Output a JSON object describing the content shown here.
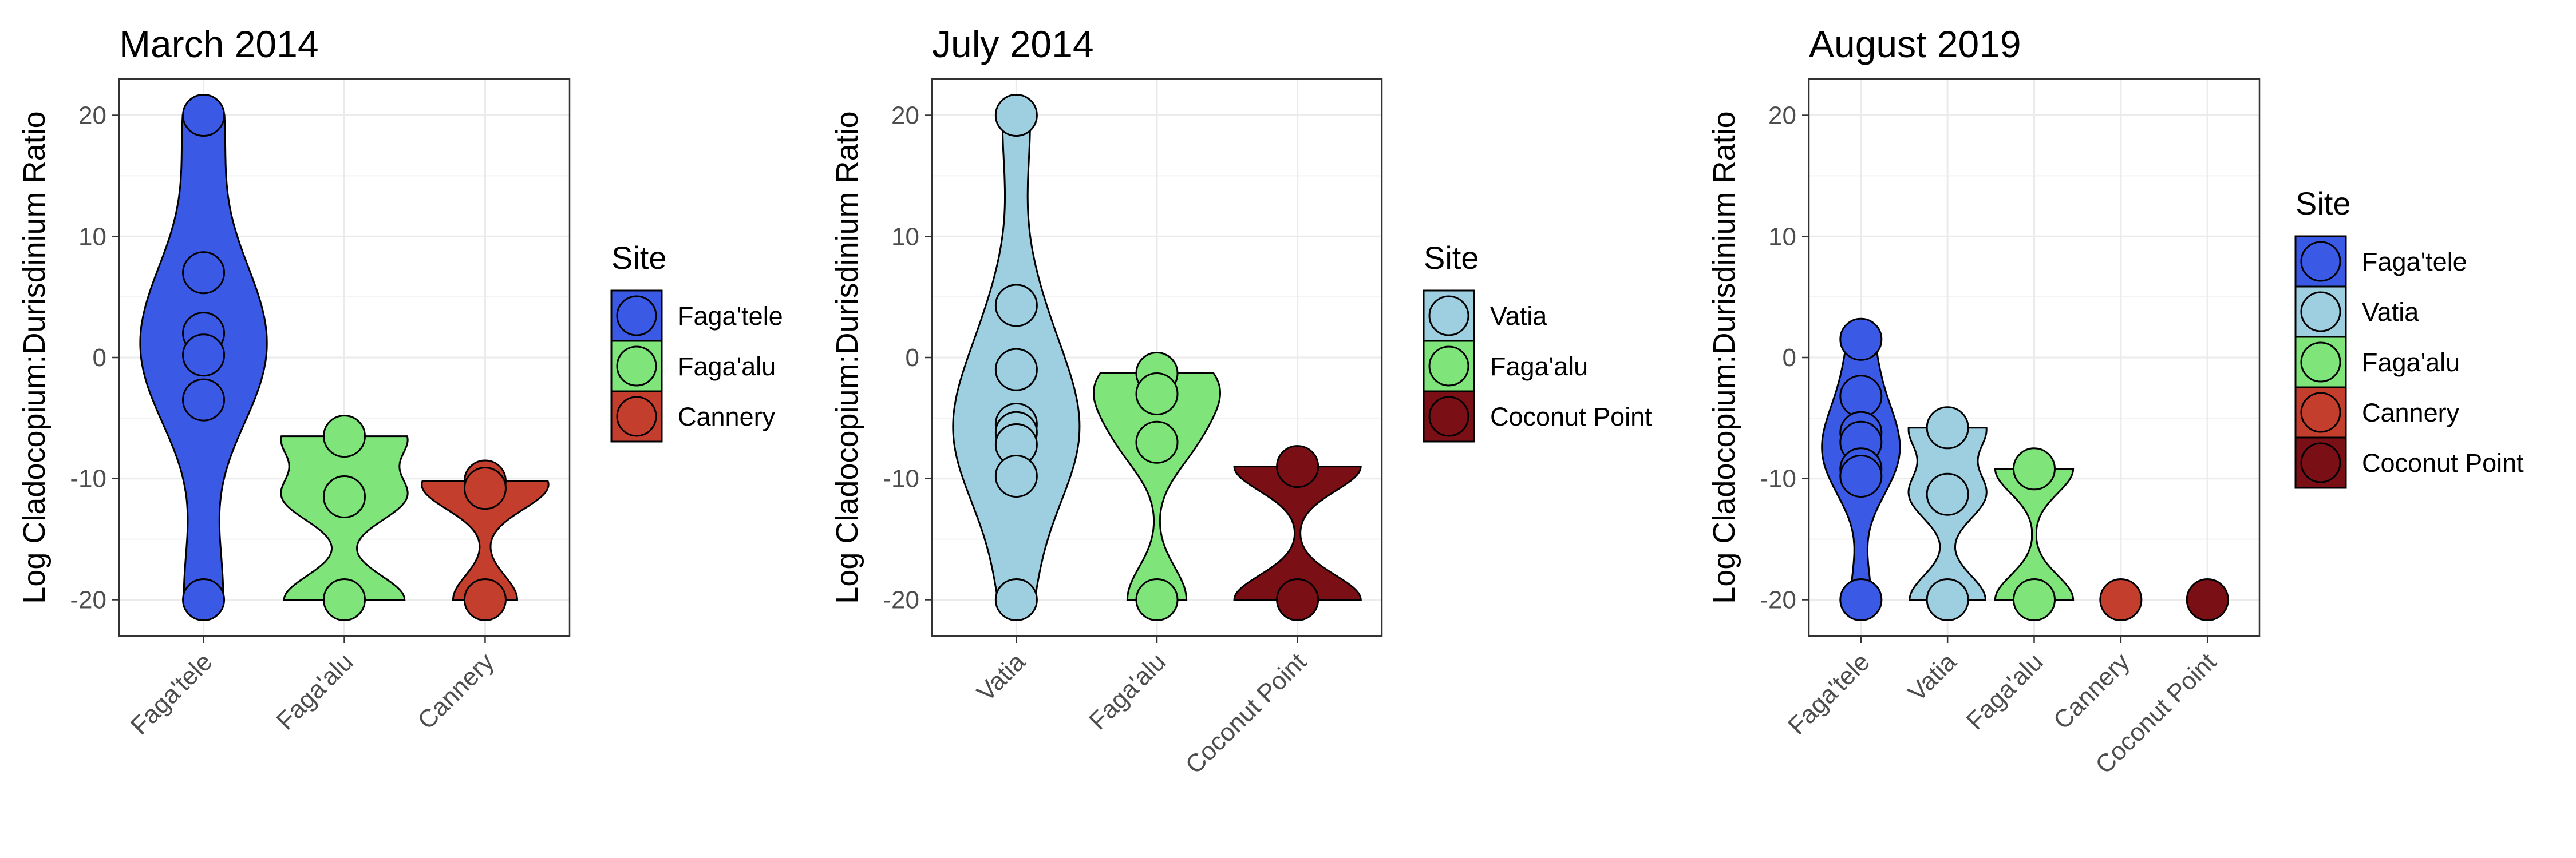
{
  "chart_data": [
    {
      "type": "violin",
      "title": "March 2014",
      "ylabel": "Log Cladocopium:Durisdinium Ratio",
      "xlabel": "",
      "ylim": [
        -23,
        23
      ],
      "yticks": [
        -20,
        -10,
        0,
        10,
        20
      ],
      "categories": [
        "Faga'tele",
        "Faga'alu",
        "Cannery"
      ],
      "series": [
        {
          "name": "Faga'tele",
          "color": "#3a5ae6",
          "values": [
            20,
            7,
            2,
            0.2,
            -3.5,
            -20
          ]
        },
        {
          "name": "Faga'alu",
          "color": "#7fe57a",
          "values": [
            -6.5,
            -11.5,
            -20
          ]
        },
        {
          "name": "Cannery",
          "color": "#c43e2e",
          "values": [
            -10.2,
            -10.8,
            -20
          ]
        }
      ],
      "legend": {
        "title": "Site",
        "entries": [
          "Faga'tele",
          "Faga'alu",
          "Cannery"
        ]
      }
    },
    {
      "type": "violin",
      "title": "July 2014",
      "ylabel": "Log Cladocopium:Durisdinium Ratio",
      "xlabel": "",
      "ylim": [
        -23,
        23
      ],
      "yticks": [
        -20,
        -10,
        0,
        10,
        20
      ],
      "categories": [
        "Vatia",
        "Faga'alu",
        "Coconut Point"
      ],
      "series": [
        {
          "name": "Vatia",
          "color": "#9ecfe0",
          "values": [
            20,
            4.3,
            -1,
            -5.5,
            -6.2,
            -7.2,
            -9.8,
            -20
          ]
        },
        {
          "name": "Faga'alu",
          "color": "#7fe57a",
          "values": [
            -1.3,
            -3,
            -7,
            -20
          ]
        },
        {
          "name": "Coconut Point",
          "color": "#7a1016",
          "values": [
            -9,
            -20
          ]
        }
      ],
      "legend": {
        "title": "Site",
        "entries": [
          "Vatia",
          "Faga'alu",
          "Coconut Point"
        ]
      }
    },
    {
      "type": "violin",
      "title": "August 2019",
      "ylabel": "Log Cladocopium:Durisdinium Ratio",
      "xlabel": "",
      "ylim": [
        -23,
        23
      ],
      "yticks": [
        -20,
        -10,
        0,
        10,
        20
      ],
      "categories": [
        "Faga'tele",
        "Vatia",
        "Faga'alu",
        "Cannery",
        "Coconut Point"
      ],
      "series": [
        {
          "name": "Faga'tele",
          "color": "#3a5ae6",
          "values": [
            1.5,
            -3.2,
            -6.2,
            -7,
            -9.2,
            -9.8,
            -20
          ]
        },
        {
          "name": "Vatia",
          "color": "#9ecfe0",
          "values": [
            -5.8,
            -11.3,
            -20
          ]
        },
        {
          "name": "Faga'alu",
          "color": "#7fe57a",
          "values": [
            -9.2,
            -20
          ]
        },
        {
          "name": "Cannery",
          "color": "#c43e2e",
          "values": [
            -20
          ]
        },
        {
          "name": "Coconut Point",
          "color": "#7a1016",
          "values": [
            -20
          ]
        }
      ],
      "legend": {
        "title": "Site",
        "entries": [
          "Faga'tele",
          "Vatia",
          "Faga'alu",
          "Cannery",
          "Coconut Point"
        ]
      }
    }
  ]
}
